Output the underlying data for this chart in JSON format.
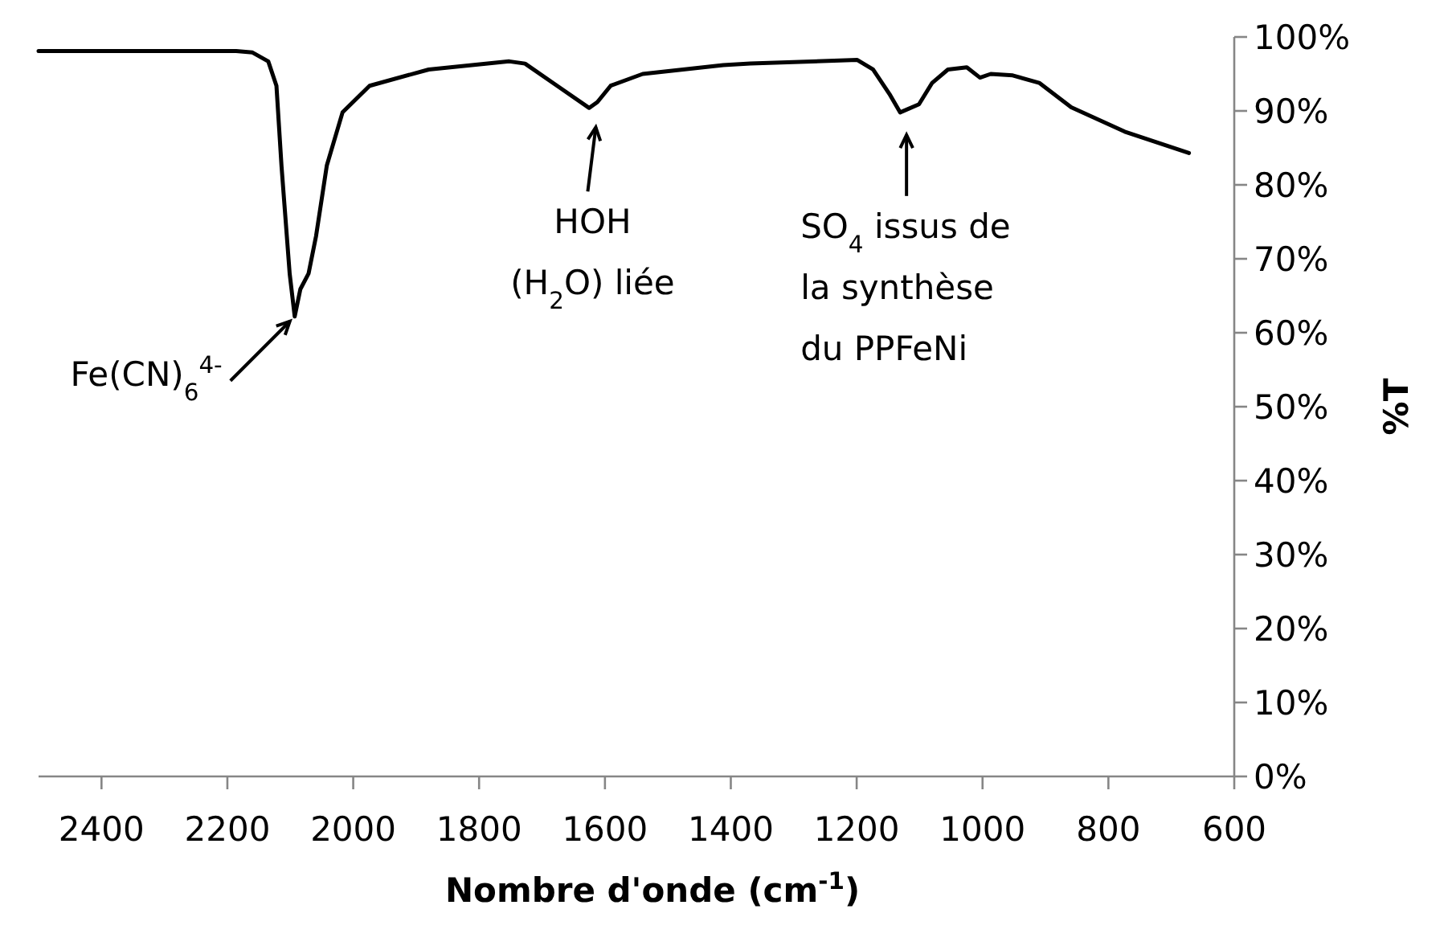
{
  "chart_data": {
    "type": "line",
    "xlabel": "Nombre d'onde (cm$^{-1}$)",
    "ylabel": "%T",
    "xlim": [
      2500,
      600
    ],
    "xticks": [
      2400,
      2200,
      2000,
      1800,
      1600,
      1400,
      1200,
      1000,
      800,
      600
    ],
    "ylim": [
      0,
      100
    ],
    "yticks": [
      {
        "value": 0,
        "label": "0%"
      },
      {
        "value": 10,
        "label": "10%"
      },
      {
        "value": 20,
        "label": "20%"
      },
      {
        "value": 30,
        "label": "30%"
      },
      {
        "value": 40,
        "label": "40%"
      },
      {
        "value": 50,
        "label": "50%"
      },
      {
        "value": 60,
        "label": "60%"
      },
      {
        "value": 70,
        "label": "70%"
      },
      {
        "value": 80,
        "label": "80%"
      },
      {
        "value": 90,
        "label": "90%"
      },
      {
        "value": 100,
        "label": "100%"
      }
    ],
    "grid": false,
    "marker": "none",
    "line_style": "solid",
    "series": [
      {
        "color": "#000000",
        "x": [
          2500,
          2331,
          2186,
          2160,
          2135,
          2122,
          2114,
          2101,
          2093,
          2084,
          2071,
          2059,
          2042,
          2017,
          1974,
          1880,
          1752,
          1727,
          1676,
          1625,
          1612,
          1591,
          1540,
          1412,
          1369,
          1199,
          1174,
          1148,
          1131,
          1101,
          1080,
          1055,
          1025,
          1004,
          987,
          952,
          910,
          859,
          774,
          672
        ],
        "values": [
          98.1,
          98.1,
          98.1,
          97.9,
          96.7,
          93.4,
          82.6,
          68.0,
          62.2,
          65.9,
          68.0,
          73.1,
          82.6,
          89.8,
          93.4,
          95.6,
          96.7,
          96.4,
          93.4,
          90.4,
          91.2,
          93.4,
          95.0,
          96.2,
          96.4,
          96.9,
          95.6,
          92.3,
          89.8,
          90.9,
          93.8,
          95.6,
          95.9,
          94.5,
          95.0,
          94.8,
          93.8,
          90.5,
          87.2,
          84.3
        ]
      }
    ],
    "annotations": [
      {
        "text": "Fe(CN)$_{6}$$^{4-}$",
        "x": 2093,
        "y": 62.2
      },
      {
        "text": "HOH\n(H$_{2}$O) liée",
        "x": 1612,
        "y": 90.4
      },
      {
        "text": "SO$_{4}$ issus de\nla synthèse\ndu PPFeNi",
        "x": 1131,
        "y": 89.8
      }
    ]
  }
}
